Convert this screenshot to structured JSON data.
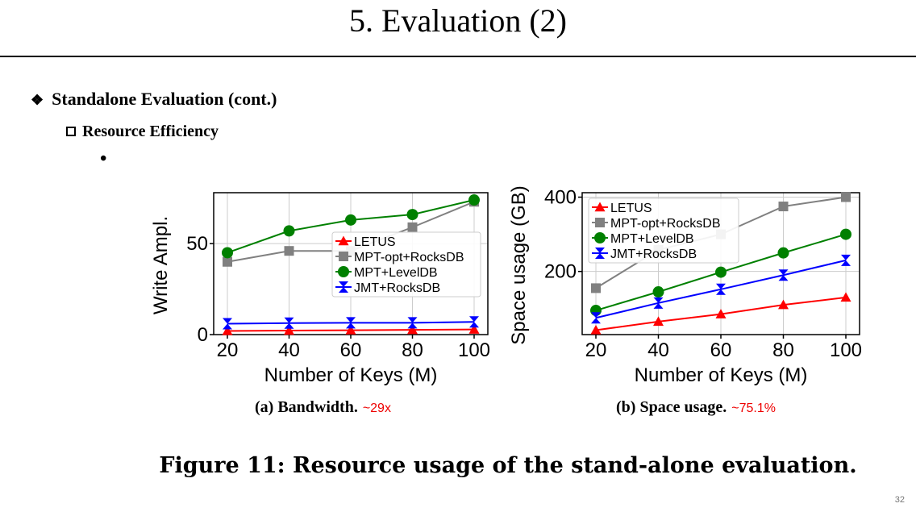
{
  "slide": {
    "title": "5. Evaluation (2)",
    "bullet1": "Standalone Evaluation (cont.)",
    "bullet2": "Resource Efficiency",
    "bullet3": "•",
    "figure_caption": "Figure 11: Resource usage of the stand-alone evaluation.",
    "page_number": "32",
    "caption_a": {
      "text": "(a) Bandwidth.",
      "note": "~29x"
    },
    "caption_b": {
      "text": "(b) Space usage.",
      "note": "~75.1%"
    }
  },
  "chart_data": [
    {
      "type": "line",
      "xlabel": "Number of Keys (M)",
      "ylabel": "Write Ampl.",
      "x": [
        20,
        40,
        60,
        80,
        100
      ],
      "xlim": [
        20,
        100
      ],
      "ylim": [
        0,
        78
      ],
      "yticks": [
        0,
        50
      ],
      "grid": true,
      "legend": "center-right",
      "series": [
        {
          "name": "LETUS",
          "marker": "triangle",
          "color": "#ff0000",
          "values": [
            2,
            2.2,
            2.4,
            2.6,
            2.8
          ]
        },
        {
          "name": "MPT-opt+RocksDB",
          "marker": "square",
          "color": "#808080",
          "values": [
            40,
            46,
            46,
            59,
            73
          ]
        },
        {
          "name": "MPT+LevelDB",
          "marker": "circle",
          "color": "#008000",
          "values": [
            45,
            57,
            63,
            66,
            74
          ]
        },
        {
          "name": "JMT+RocksDB",
          "marker": "hourglass",
          "color": "#0000ff",
          "values": [
            6,
            6.3,
            6.5,
            6.5,
            7
          ]
        }
      ]
    },
    {
      "type": "line",
      "xlabel": "Number of Keys (M)",
      "ylabel": "Space usage (GB)",
      "x": [
        20,
        40,
        60,
        80,
        100
      ],
      "xlim": [
        20,
        100
      ],
      "ylim": [
        30,
        412
      ],
      "yticks": [
        200,
        400
      ],
      "grid": true,
      "legend": "top-left",
      "series": [
        {
          "name": "LETUS",
          "marker": "triangle",
          "color": "#ff0000",
          "values": [
            42,
            65,
            85,
            110,
            130
          ]
        },
        {
          "name": "MPT-opt+RocksDB",
          "marker": "square",
          "color": "#808080",
          "values": [
            155,
            258,
            300,
            375,
            400
          ]
        },
        {
          "name": "MPT+LevelDB",
          "marker": "circle",
          "color": "#008000",
          "values": [
            95,
            145,
            198,
            250,
            300
          ]
        },
        {
          "name": "JMT+RocksDB",
          "marker": "hourglass",
          "color": "#0000ff",
          "values": [
            75,
            115,
            152,
            190,
            230
          ]
        }
      ]
    }
  ]
}
